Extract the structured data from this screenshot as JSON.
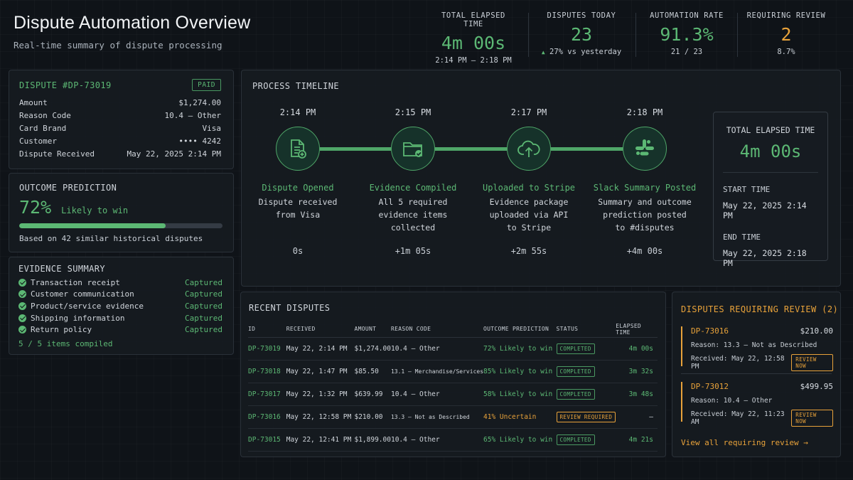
{
  "header": {
    "title": "Dispute Automation Overview",
    "subtitle": "Real-time summary of dispute processing"
  },
  "stats": [
    {
      "label": "TOTAL ELAPSED TIME",
      "value": "4m 00s",
      "sub": "2:14 PM – 2:18 PM"
    },
    {
      "label": "DISPUTES TODAY",
      "value": "23",
      "sub": "27% vs yesterday",
      "trend": "up"
    },
    {
      "label": "AUTOMATION RATE",
      "value": "91.3%",
      "sub": "21 / 23"
    },
    {
      "label": "REQUIRING REVIEW",
      "value": "2",
      "sub": "8.7%"
    }
  ],
  "dispute": {
    "title": "DISPUTE #DP-73019",
    "badge": "PAID",
    "fields": [
      {
        "label": "Amount",
        "value": "$1,274.00"
      },
      {
        "label": "Reason Code",
        "value": "10.4 – Other"
      },
      {
        "label": "Card Brand",
        "value": "Visa"
      },
      {
        "label": "Customer",
        "value": "•••• 4242"
      },
      {
        "label": "Dispute Received",
        "value": "May 22, 2025 2:14 PM"
      }
    ]
  },
  "prediction": {
    "title": "OUTCOME PREDICTION",
    "percent": "72%",
    "label": "Likely to win",
    "progress": 0.72,
    "note": "Based on 42 similar historical disputes"
  },
  "evidence": {
    "title": "EVIDENCE SUMMARY",
    "items": [
      {
        "label": "Transaction receipt",
        "status": "Captured"
      },
      {
        "label": "Customer communication",
        "status": "Captured"
      },
      {
        "label": "Product/service evidence",
        "status": "Captured"
      },
      {
        "label": "Shipping information",
        "status": "Captured"
      },
      {
        "label": "Return policy",
        "status": "Captured"
      }
    ],
    "footer": "5 / 5 items compiled"
  },
  "timeline": {
    "title": "PROCESS TIMELINE",
    "steps": [
      {
        "time": "2:14 PM",
        "icon": "document-add-icon",
        "name": "Dispute Opened",
        "desc": [
          "Dispute received",
          "from Visa"
        ],
        "delta": "0s"
      },
      {
        "time": "2:15 PM",
        "icon": "folder-check-icon",
        "name": "Evidence Compiled",
        "desc": [
          "All 5 required",
          "evidence items",
          "collected"
        ],
        "delta": "+1m 05s"
      },
      {
        "time": "2:17 PM",
        "icon": "cloud-upload-icon",
        "name": "Uploaded to Stripe",
        "desc": [
          "Evidence package",
          "uploaded via API",
          "to Stripe"
        ],
        "delta": "+2m 55s"
      },
      {
        "time": "2:18 PM",
        "icon": "slack-icon",
        "name": "Slack Summary Posted",
        "desc": [
          "Summary and outcome",
          "prediction posted",
          "to #disputes"
        ],
        "delta": "+4m 00s"
      }
    ],
    "summary": {
      "label": "TOTAL ELAPSED TIME",
      "value": "4m 00s",
      "start_label": "START TIME",
      "start_value": "May 22, 2025 2:14 PM",
      "end_label": "END TIME",
      "end_value": "May 22, 2025 2:18 PM"
    }
  },
  "recent": {
    "title": "RECENT DISPUTES",
    "columns": [
      "ID",
      "RECEIVED",
      "AMOUNT",
      "REASON CODE",
      "OUTCOME PREDICTION",
      "STATUS",
      "ELAPSED TIME"
    ],
    "rows": [
      {
        "id": "DP-73019",
        "received": "May 22, 2:14 PM",
        "amount": "$1,274.00",
        "reason": "10.4 – Other",
        "prediction": "72% Likely to win",
        "status": "COMPLETED",
        "elapsed": "4m 00s",
        "tone": "green"
      },
      {
        "id": "DP-73018",
        "received": "May 22, 1:47 PM",
        "amount": "$85.50",
        "reason": "13.1 – Merchandise/Services",
        "prediction": "85% Likely to win",
        "status": "COMPLETED",
        "elapsed": "3m 32s",
        "tone": "green"
      },
      {
        "id": "DP-73017",
        "received": "May 22, 1:32 PM",
        "amount": "$639.99",
        "reason": "10.4 – Other",
        "prediction": "58% Likely to win",
        "status": "COMPLETED",
        "elapsed": "3m 48s",
        "tone": "green"
      },
      {
        "id": "DP-73016",
        "received": "May 22, 12:58 PM",
        "amount": "$210.00",
        "reason": "13.3 – Not as Described",
        "prediction": "41% Uncertain",
        "status": "REVIEW REQUIRED",
        "elapsed": "–",
        "tone": "amber"
      },
      {
        "id": "DP-73015",
        "received": "May 22, 12:41 PM",
        "amount": "$1,899.00",
        "reason": "10.4 – Other",
        "prediction": "65% Likely to win",
        "status": "COMPLETED",
        "elapsed": "4m 21s",
        "tone": "green"
      }
    ]
  },
  "review": {
    "title": "DISPUTES REQUIRING REVIEW (2)",
    "items": [
      {
        "id": "DP-73016",
        "amount": "$210.00",
        "reason": "Reason: 13.3 – Not as Described",
        "received": "Received: May 22, 12:58 PM",
        "button": "REVIEW NOW"
      },
      {
        "id": "DP-73012",
        "amount": "$499.95",
        "reason": "Reason: 10.4 – Other",
        "received": "Received: May 22, 11:23 AM",
        "button": "REVIEW NOW"
      }
    ],
    "link": "View all requiring review →"
  },
  "colors": {
    "accent": "#5cb874",
    "warning": "#e8a23a",
    "background": "#0f1318"
  }
}
